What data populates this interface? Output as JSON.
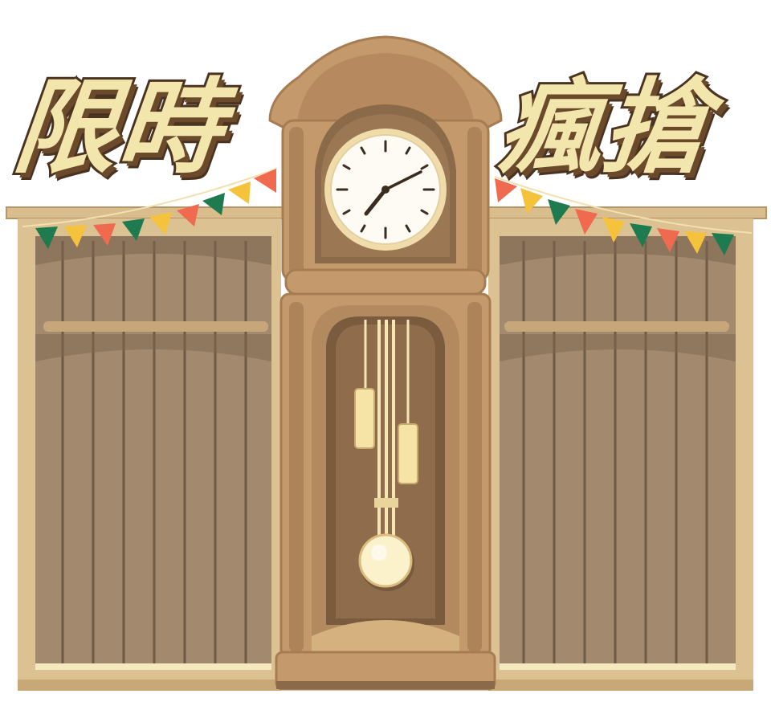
{
  "banner": {
    "title_left": "限時",
    "title_right": "瘋搶"
  },
  "icons": {
    "clock": "grandfather-clock-icon",
    "pendulum": "pendulum-icon",
    "bunting": "bunting-flags-icon"
  },
  "colors": {
    "title_fill": "#f3e6ad",
    "title_outline": "#4a3320",
    "wood_light": "#dcc192",
    "wood_mid": "#c49a6c",
    "wood_dark": "#8b6a4a",
    "panel": "#a38a6e",
    "flag_green": "#1e7a4f",
    "flag_yellow": "#f5c23c",
    "flag_red": "#f06a50"
  }
}
